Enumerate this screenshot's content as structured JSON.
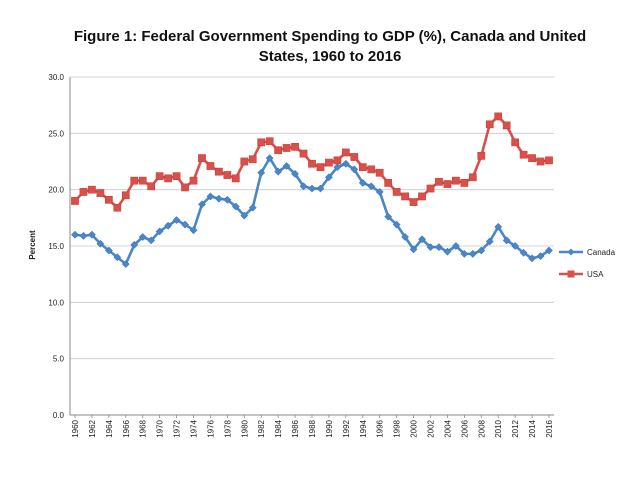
{
  "chart_data": {
    "type": "line",
    "title": "Figure 1: Federal Government Spending to GDP  (%), Canada and United States, 1960 to 2016",
    "xlabel": "",
    "ylabel": "Percent",
    "ylim": [
      0,
      30
    ],
    "yticks": [
      "0.0",
      "5.0",
      "10.0",
      "15.0",
      "20.0",
      "25.0",
      "30.0"
    ],
    "x": [
      1960,
      1961,
      1962,
      1963,
      1964,
      1965,
      1966,
      1967,
      1968,
      1969,
      1970,
      1971,
      1972,
      1973,
      1974,
      1975,
      1976,
      1977,
      1978,
      1979,
      1980,
      1981,
      1982,
      1983,
      1984,
      1985,
      1986,
      1987,
      1988,
      1989,
      1990,
      1991,
      1992,
      1993,
      1994,
      1995,
      1996,
      1997,
      1998,
      1999,
      2000,
      2001,
      2002,
      2003,
      2004,
      2005,
      2006,
      2007,
      2008,
      2009,
      2010,
      2011,
      2012,
      2013,
      2014,
      2015,
      2016
    ],
    "xticks": [
      "1960",
      "1962",
      "1964",
      "1966",
      "1968",
      "1970",
      "1972",
      "1974",
      "1976",
      "1978",
      "1980",
      "1982",
      "1984",
      "1986",
      "1988",
      "1990",
      "1992",
      "1994",
      "1996",
      "1998",
      "2000",
      "2002",
      "2004",
      "2006",
      "2008",
      "2010",
      "2012",
      "2014",
      "2016"
    ],
    "grid": "horizontal",
    "legend_position": "right",
    "series": [
      {
        "name": "Canada",
        "color": "#4a86c8",
        "marker": "diamond",
        "values": [
          16.0,
          15.9,
          16.0,
          15.2,
          14.6,
          14.0,
          13.4,
          15.1,
          15.8,
          15.5,
          16.3,
          16.8,
          17.3,
          16.9,
          16.4,
          18.7,
          19.4,
          19.2,
          19.1,
          18.5,
          17.7,
          18.4,
          21.5,
          22.8,
          21.6,
          22.1,
          21.4,
          20.3,
          20.1,
          20.1,
          21.1,
          22.0,
          22.3,
          21.8,
          20.6,
          20.3,
          19.8,
          17.6,
          16.9,
          15.8,
          14.7,
          15.6,
          14.9,
          14.9,
          14.5,
          15.0,
          14.3,
          14.3,
          14.6,
          15.4,
          16.7,
          15.5,
          15.0,
          14.4,
          13.9,
          14.1,
          14.6
        ]
      },
      {
        "name": "USA",
        "color": "#d9504a",
        "marker": "square",
        "values": [
          19.0,
          19.8,
          20.0,
          19.7,
          19.1,
          18.4,
          19.5,
          20.8,
          20.8,
          20.3,
          21.2,
          21.0,
          21.2,
          20.2,
          20.8,
          22.8,
          22.1,
          21.6,
          21.3,
          21.0,
          22.5,
          22.7,
          24.2,
          24.3,
          23.5,
          23.7,
          23.8,
          23.2,
          22.3,
          22.0,
          22.4,
          22.6,
          23.3,
          22.9,
          22.0,
          21.8,
          21.5,
          20.6,
          19.8,
          19.4,
          18.9,
          19.4,
          20.1,
          20.7,
          20.5,
          20.8,
          20.6,
          21.1,
          23.0,
          25.8,
          26.5,
          25.7,
          24.2,
          23.1,
          22.8,
          22.5,
          22.6
        ]
      }
    ]
  }
}
